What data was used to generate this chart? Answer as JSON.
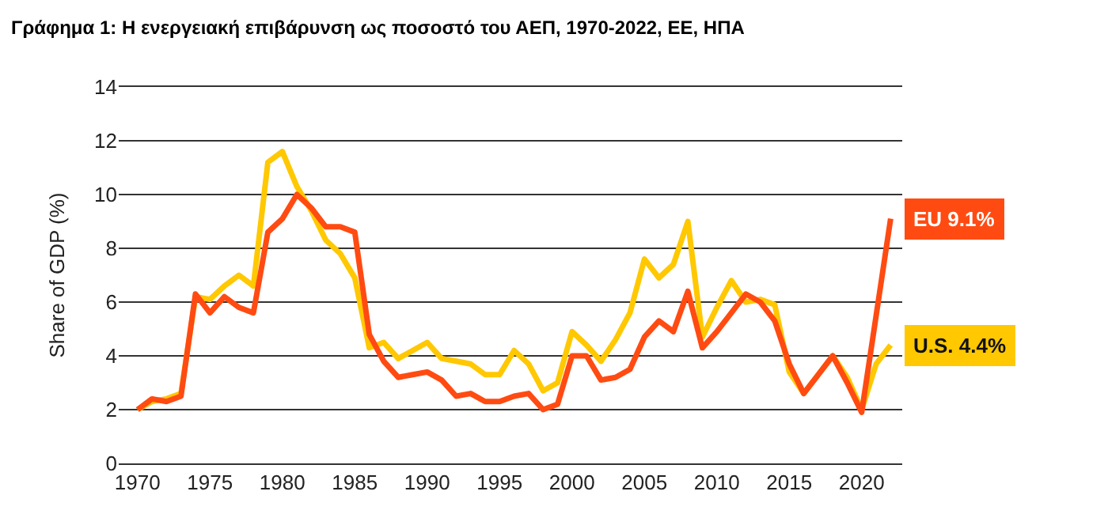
{
  "chart_data": {
    "type": "line",
    "title": "Γράφημα 1: Η ενεργειακή επιβάρυνση ως ποσοστό του ΑΕΠ, 1970-2022, ΕΕ, ΗΠΑ",
    "ylabel": "Share of GDP (%)",
    "x": [
      1970,
      1971,
      1972,
      1973,
      1974,
      1975,
      1976,
      1977,
      1978,
      1979,
      1980,
      1981,
      1982,
      1983,
      1984,
      1985,
      1986,
      1987,
      1988,
      1989,
      1990,
      1991,
      1992,
      1993,
      1994,
      1995,
      1996,
      1997,
      1998,
      1999,
      2000,
      2001,
      2002,
      2003,
      2004,
      2005,
      2006,
      2007,
      2008,
      2009,
      2010,
      2011,
      2012,
      2013,
      2014,
      2015,
      2016,
      2017,
      2018,
      2019,
      2020,
      2021,
      2022
    ],
    "series": [
      {
        "color": "#ffc800",
        "values": [
          2.0,
          2.3,
          2.4,
          2.6,
          6.2,
          6.1,
          6.6,
          7.0,
          6.6,
          11.2,
          11.6,
          10.3,
          9.4,
          8.3,
          7.8,
          6.9,
          4.3,
          4.5,
          3.9,
          4.2,
          4.5,
          3.9,
          3.8,
          3.7,
          3.3,
          3.3,
          4.2,
          3.7,
          2.7,
          3.0,
          4.9,
          4.4,
          3.8,
          4.6,
          5.6,
          7.6,
          6.9,
          7.4,
          9.0,
          4.7,
          5.8,
          6.8,
          6.0,
          6.1,
          5.9,
          3.4,
          2.6,
          3.3,
          4.0,
          3.2,
          2.0,
          3.7,
          4.4
        ]
      },
      {
        "color": "#ff4b12",
        "values": [
          2.0,
          2.4,
          2.3,
          2.5,
          6.3,
          5.6,
          6.2,
          5.8,
          5.6,
          8.6,
          9.1,
          10.0,
          9.5,
          8.8,
          8.8,
          8.6,
          4.8,
          3.8,
          3.2,
          3.3,
          3.4,
          3.1,
          2.5,
          2.6,
          2.3,
          2.3,
          2.5,
          2.6,
          2.0,
          2.2,
          4.0,
          4.0,
          3.1,
          3.2,
          3.5,
          4.7,
          5.3,
          4.9,
          6.4,
          4.3,
          4.9,
          5.6,
          6.3,
          6.0,
          5.3,
          3.7,
          2.6,
          3.3,
          4.0,
          3.0,
          1.9,
          5.5,
          9.1
        ]
      }
    ],
    "annotations": [
      {
        "text": "U.S. 4.4%",
        "x": 2022,
        "y": 4.4
      },
      {
        "text": "EU 9.1%",
        "x": 2022,
        "y": 9.1
      }
    ],
    "xlim": [
      1968.7,
      2022.8
    ],
    "xticks": [
      1970,
      1975,
      1980,
      1985,
      1990,
      1995,
      2000,
      2005,
      2010,
      2015,
      2020
    ],
    "ylim": [
      0,
      14
    ],
    "yticks": [
      0,
      2,
      4,
      6,
      8,
      10,
      12,
      14
    ],
    "grid": "y",
    "marker": "none",
    "line_style": "solid"
  }
}
